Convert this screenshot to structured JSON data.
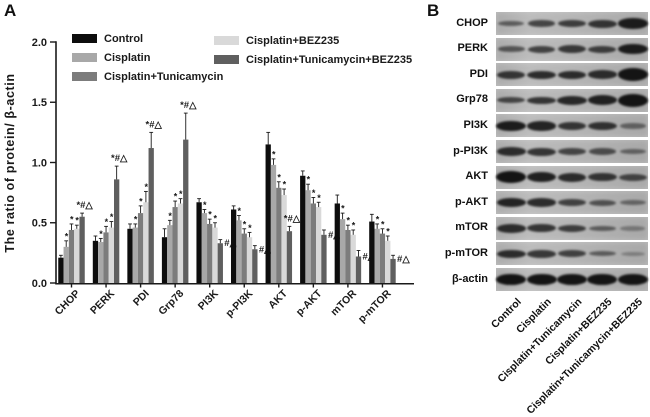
{
  "figure": {
    "panel_a_label": "A",
    "panel_b_label": "B"
  },
  "colors": {
    "ink": "#1a1a1a",
    "blot_background": "#b3b3b3",
    "blot_band": "#141414"
  },
  "chart_data": {
    "type": "bar",
    "title": "",
    "xlabel": "",
    "ylabel": "The ratio of protein/ β-actin",
    "ylim": [
      0,
      2.0
    ],
    "yticks": [
      0.0,
      0.5,
      1.0,
      1.5,
      2.0
    ],
    "grid": false,
    "legend_position": "top-inside-two-columns",
    "categories": [
      "CHOP",
      "PERK",
      "PDI",
      "Grp78",
      "PI3K",
      "p-PI3K",
      "AKT",
      "p-AKT",
      "mTOR",
      "p-mTOR"
    ],
    "series": [
      {
        "name": "Control",
        "color": "#0d0d0d",
        "values": [
          0.21,
          0.35,
          0.45,
          0.38,
          0.67,
          0.61,
          1.15,
          0.89,
          0.66,
          0.51
        ],
        "errors": [
          0.02,
          0.04,
          0.04,
          0.07,
          0.03,
          0.03,
          0.1,
          0.04,
          0.07,
          0.06
        ]
      },
      {
        "name": "Cisplatin",
        "color": "#a8a8a8",
        "values": [
          0.3,
          0.34,
          0.46,
          0.48,
          0.58,
          0.52,
          0.98,
          0.77,
          0.53,
          0.45
        ],
        "errors": [
          0.05,
          0.03,
          0.03,
          0.04,
          0.03,
          0.04,
          0.05,
          0.05,
          0.05,
          0.04
        ]
      },
      {
        "name": "Cisplatin+Tunicamycin",
        "color": "#7c7c7c",
        "values": [
          0.44,
          0.42,
          0.58,
          0.63,
          0.49,
          0.41,
          0.79,
          0.66,
          0.44,
          0.41
        ],
        "errors": [
          0.05,
          0.05,
          0.06,
          0.05,
          0.04,
          0.04,
          0.05,
          0.05,
          0.04,
          0.04
        ]
      },
      {
        "name": "Cisplatin+BEZ235",
        "color": "#d9d9d9",
        "values": [
          0.45,
          0.46,
          0.67,
          0.66,
          0.46,
          0.38,
          0.73,
          0.63,
          0.4,
          0.35
        ],
        "errors": [
          0.03,
          0.05,
          0.09,
          0.04,
          0.04,
          0.04,
          0.05,
          0.04,
          0.04,
          0.04
        ]
      },
      {
        "name": "Cisplatin+Tunicamycin+BEZ235",
        "color": "#5f5f5f",
        "values": [
          0.55,
          0.86,
          1.12,
          1.19,
          0.33,
          0.28,
          0.43,
          0.4,
          0.22,
          0.2
        ],
        "errors": [
          0.03,
          0.11,
          0.13,
          0.22,
          0.03,
          0.03,
          0.04,
          0.04,
          0.05,
          0.03
        ]
      }
    ],
    "significance": {
      "star_symbol": "*",
      "star_series_indices": [
        1,
        2,
        3
      ],
      "group_annotations": [
        {
          "category": "CHOP",
          "text": "*#△",
          "placement": "above"
        },
        {
          "category": "PERK",
          "text": "*#△",
          "placement": "above"
        },
        {
          "category": "PDI",
          "text": "*#△",
          "placement": "above"
        },
        {
          "category": "Grp78",
          "text": "*#△",
          "placement": "above"
        },
        {
          "category": "PI3K",
          "text": "#△",
          "placement": "right"
        },
        {
          "category": "p-PI3K",
          "text": "#△",
          "placement": "right"
        },
        {
          "category": "AKT",
          "text": "*#△",
          "placement": "above"
        },
        {
          "category": "p-AKT",
          "text": "#△",
          "placement": "right"
        },
        {
          "category": "mTOR",
          "text": "#△",
          "placement": "right"
        },
        {
          "category": "p-mTOR",
          "text": "#△",
          "placement": "right"
        }
      ]
    }
  },
  "blot_panel": {
    "lane_labels": [
      "Control",
      "Cisplatin",
      "Cisplatin+Tunicamycin",
      "Cisplatin+BEZ235",
      "Cisplatin+Tunicamycin+BEZ235"
    ],
    "rows": [
      {
        "label": "CHOP",
        "intensities": [
          0.55,
          0.7,
          0.75,
          0.8,
          0.95
        ],
        "band_heights": [
          5,
          6.5,
          7,
          8,
          10.5
        ]
      },
      {
        "label": "PERK",
        "intensities": [
          0.6,
          0.72,
          0.78,
          0.75,
          0.95
        ],
        "band_heights": [
          5.5,
          7,
          8,
          7,
          10.5
        ]
      },
      {
        "label": "PDI",
        "intensities": [
          0.8,
          0.85,
          0.85,
          0.85,
          1.0
        ],
        "band_heights": [
          8,
          8,
          8,
          8.5,
          12.5
        ]
      },
      {
        "label": "Grp78",
        "intensities": [
          0.7,
          0.8,
          0.88,
          0.92,
          1.0
        ],
        "band_heights": [
          6,
          7.5,
          9,
          10,
          13
        ]
      },
      {
        "label": "PI3K",
        "intensities": [
          0.95,
          0.9,
          0.8,
          0.82,
          0.5
        ],
        "band_heights": [
          10.5,
          9.5,
          8,
          8,
          5.5
        ]
      },
      {
        "label": "p-PI3K",
        "intensities": [
          0.85,
          0.8,
          0.7,
          0.65,
          0.5
        ],
        "band_heights": [
          8.5,
          8,
          7,
          6.5,
          5.5
        ]
      },
      {
        "label": "AKT",
        "intensities": [
          1.0,
          0.92,
          0.85,
          0.8,
          0.7
        ],
        "band_heights": [
          12,
          10.5,
          9,
          8.5,
          7
        ]
      },
      {
        "label": "p-AKT",
        "intensities": [
          0.9,
          0.85,
          0.72,
          0.62,
          0.48
        ],
        "band_heights": [
          9.5,
          8.5,
          7,
          6,
          5.5
        ]
      },
      {
        "label": "mTOR",
        "intensities": [
          0.85,
          0.8,
          0.75,
          0.55,
          0.35
        ],
        "band_heights": [
          8.5,
          8,
          7,
          5.5,
          4.5
        ]
      },
      {
        "label": "p-mTOR",
        "intensities": [
          0.85,
          0.78,
          0.72,
          0.55,
          0.3
        ],
        "band_heights": [
          8,
          7.5,
          7,
          5,
          4
        ]
      },
      {
        "label": "β-actin",
        "intensities": [
          1.0,
          1.0,
          1.0,
          1.0,
          1.0
        ],
        "band_heights": [
          11.5,
          11.5,
          11.5,
          11.5,
          11.5
        ]
      }
    ]
  }
}
